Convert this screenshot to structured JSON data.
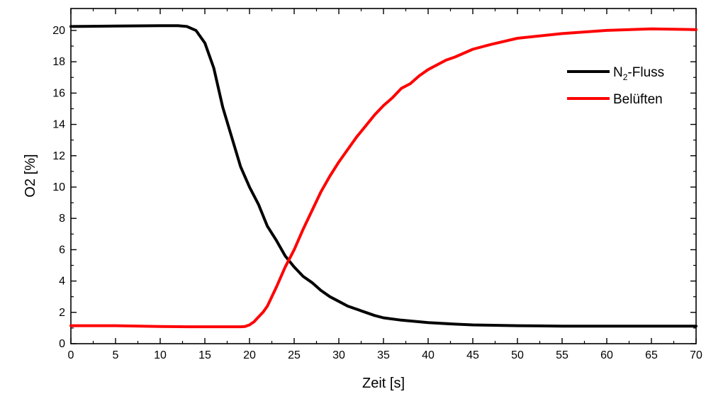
{
  "chart_data": {
    "type": "line",
    "xlabel": "Zeit [s]",
    "ylabel": "O2 [%]",
    "xlim": [
      0,
      70
    ],
    "ylim": [
      0,
      21.4
    ],
    "xticks": [
      0,
      5,
      10,
      15,
      20,
      25,
      30,
      35,
      40,
      45,
      50,
      55,
      60,
      65,
      70
    ],
    "yticks": [
      0,
      2,
      4,
      6,
      8,
      10,
      12,
      14,
      16,
      18,
      20
    ],
    "grid": false,
    "legend_position": "top-right",
    "series": [
      {
        "name": "N2-Fluss",
        "name_parts": {
          "main": "N",
          "sub": "2",
          "rest": "-Fluss"
        },
        "color": "#000000",
        "x": [
          0,
          5,
          10,
          12,
          13,
          14,
          15,
          16,
          17,
          18,
          19,
          20,
          21,
          22,
          23,
          24,
          25,
          26,
          27,
          28,
          29,
          30,
          31,
          32,
          33,
          34,
          35,
          37,
          40,
          43,
          45,
          50,
          55,
          60,
          65,
          70
        ],
        "y": [
          20.25,
          20.28,
          20.3,
          20.3,
          20.25,
          20.0,
          19.2,
          17.6,
          15.1,
          13.2,
          11.3,
          10.0,
          8.9,
          7.5,
          6.6,
          5.6,
          4.9,
          4.3,
          3.9,
          3.4,
          3.0,
          2.7,
          2.4,
          2.2,
          2.0,
          1.8,
          1.65,
          1.5,
          1.35,
          1.25,
          1.2,
          1.15,
          1.12,
          1.12,
          1.12,
          1.12
        ]
      },
      {
        "name": "Belüften",
        "color": "#ff0000",
        "x": [
          0,
          5,
          10,
          13,
          15,
          17,
          19,
          19.5,
          20,
          20.5,
          21,
          21.5,
          22,
          23,
          24,
          25,
          26,
          27,
          28,
          29,
          30,
          31,
          32,
          33,
          34,
          35,
          36,
          37,
          38,
          39,
          40,
          42,
          43,
          45,
          47,
          50,
          55,
          60,
          65,
          70
        ],
        "y": [
          1.15,
          1.15,
          1.1,
          1.08,
          1.08,
          1.08,
          1.08,
          1.1,
          1.2,
          1.4,
          1.7,
          2.0,
          2.4,
          3.6,
          4.9,
          6.0,
          7.3,
          8.5,
          9.7,
          10.7,
          11.6,
          12.4,
          13.2,
          13.9,
          14.6,
          15.2,
          15.7,
          16.3,
          16.6,
          17.1,
          17.5,
          18.1,
          18.3,
          18.8,
          19.1,
          19.5,
          19.8,
          20.0,
          20.1,
          20.05
        ]
      }
    ]
  }
}
